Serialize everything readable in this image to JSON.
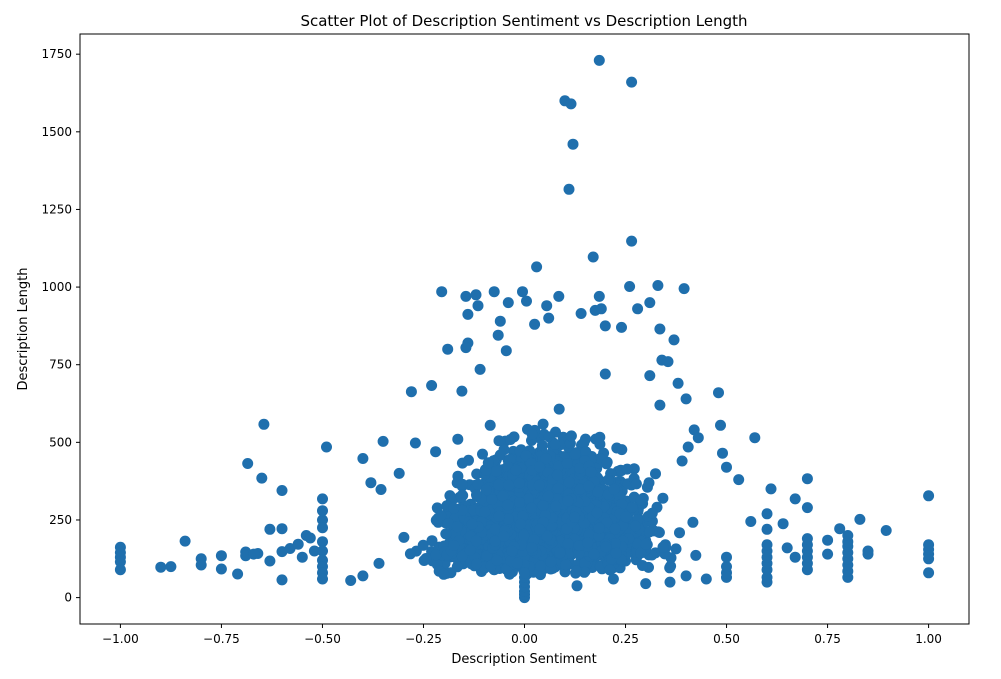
{
  "chart_data": {
    "type": "scatter",
    "title": "Scatter Plot of Description Sentiment vs Description Length",
    "xlabel": "Description Sentiment",
    "ylabel": "Description Length",
    "xlim": [
      -1.1,
      1.1
    ],
    "ylim": [
      -85,
      1815
    ],
    "xticks": [
      -1.0,
      -0.75,
      -0.5,
      -0.25,
      0.0,
      0.25,
      0.5,
      0.75,
      1.0
    ],
    "xtick_labels": [
      "−1.00",
      "−0.75",
      "−0.50",
      "−0.25",
      "0.00",
      "0.25",
      "0.50",
      "0.75",
      "1.00"
    ],
    "yticks": [
      0,
      250,
      500,
      750,
      1000,
      1250,
      1500,
      1750
    ],
    "ytick_labels": [
      "0",
      "250",
      "500",
      "750",
      "1000",
      "1250",
      "1500",
      "1750"
    ],
    "grid": false,
    "marker_color": "#1f6fad",
    "points": [
      [
        0.185,
        1730
      ],
      [
        0.265,
        1660
      ],
      [
        0.1,
        1600
      ],
      [
        0.115,
        1590
      ],
      [
        0.12,
        1460
      ],
      [
        0.11,
        1315
      ],
      [
        0.265,
        1148
      ],
      [
        0.17,
        1097
      ],
      [
        0.03,
        1065
      ],
      [
        0.33,
        1005
      ],
      [
        0.395,
        995
      ],
      [
        -0.205,
        985
      ],
      [
        -0.075,
        985
      ],
      [
        -0.145,
        970
      ],
      [
        -0.12,
        975
      ],
      [
        0.26,
        1002
      ],
      [
        0.185,
        970
      ],
      [
        0.31,
        950
      ],
      [
        -0.14,
        912
      ],
      [
        0.055,
        940
      ],
      [
        -0.115,
        940
      ],
      [
        0.28,
        930
      ],
      [
        0.175,
        925
      ],
      [
        0.19,
        930
      ],
      [
        0.14,
        915
      ],
      [
        -0.06,
        890
      ],
      [
        -0.005,
        985
      ],
      [
        0.005,
        955
      ],
      [
        0.085,
        970
      ],
      [
        -0.04,
        950
      ],
      [
        0.025,
        880
      ],
      [
        0.06,
        900
      ],
      [
        -0.065,
        845
      ],
      [
        0.2,
        875
      ],
      [
        0.24,
        870
      ],
      [
        0.335,
        865
      ],
      [
        0.37,
        830
      ],
      [
        -0.14,
        820
      ],
      [
        -0.145,
        805
      ],
      [
        -0.19,
        800
      ],
      [
        -0.045,
        795
      ],
      [
        -0.11,
        735
      ],
      [
        0.34,
        765
      ],
      [
        0.355,
        760
      ],
      [
        0.31,
        715
      ],
      [
        0.2,
        720
      ],
      [
        0.38,
        690
      ],
      [
        -0.28,
        663
      ],
      [
        -0.23,
        683
      ],
      [
        -0.155,
        665
      ],
      [
        0.48,
        660
      ],
      [
        0.4,
        640
      ],
      [
        0.335,
        620
      ],
      [
        -0.085,
        555
      ],
      [
        -0.165,
        510
      ],
      [
        -0.645,
        558
      ],
      [
        -0.49,
        485
      ],
      [
        -0.35,
        503
      ],
      [
        -0.4,
        448
      ],
      [
        -0.27,
        498
      ],
      [
        -0.22,
        470
      ],
      [
        0.42,
        540
      ],
      [
        0.485,
        555
      ],
      [
        0.57,
        515
      ],
      [
        0.49,
        465
      ],
      [
        0.39,
        440
      ],
      [
        0.405,
        485
      ],
      [
        0.43,
        515
      ],
      [
        -0.685,
        432
      ],
      [
        -0.65,
        385
      ],
      [
        -0.6,
        345
      ],
      [
        -0.38,
        370
      ],
      [
        -0.355,
        348
      ],
      [
        -0.31,
        400
      ],
      [
        0.5,
        420
      ],
      [
        0.53,
        380
      ],
      [
        0.61,
        350
      ],
      [
        0.7,
        383
      ],
      [
        0.67,
        318
      ],
      [
        1.0,
        328
      ],
      [
        0.83,
        252
      ],
      [
        0.895,
        216
      ],
      [
        0.78,
        222
      ],
      [
        0.64,
        238
      ],
      [
        0.6,
        270
      ],
      [
        0.56,
        245
      ],
      [
        -0.63,
        220
      ],
      [
        -0.6,
        222
      ],
      [
        -0.54,
        200
      ],
      [
        -0.84,
        182
      ],
      [
        -1.0,
        162
      ],
      [
        -1.0,
        145
      ],
      [
        -1.0,
        130
      ],
      [
        -1.0,
        115
      ],
      [
        -1.0,
        90
      ],
      [
        -0.9,
        98
      ],
      [
        -0.875,
        100
      ],
      [
        -0.8,
        125
      ],
      [
        -0.8,
        105
      ],
      [
        -0.75,
        135
      ],
      [
        -0.75,
        92
      ],
      [
        -0.71,
        76
      ],
      [
        -0.69,
        147
      ],
      [
        -0.69,
        135
      ],
      [
        -0.66,
        142
      ],
      [
        -0.67,
        140
      ],
      [
        -0.63,
        118
      ],
      [
        -0.6,
        57
      ],
      [
        -0.6,
        148
      ],
      [
        -0.58,
        158
      ],
      [
        -0.56,
        172
      ],
      [
        -0.55,
        130
      ],
      [
        -0.53,
        192
      ],
      [
        -0.52,
        150
      ],
      [
        -0.5,
        250
      ],
      [
        -0.5,
        225
      ],
      [
        -0.5,
        180
      ],
      [
        -0.5,
        150
      ],
      [
        -0.5,
        120
      ],
      [
        -0.5,
        100
      ],
      [
        -0.5,
        80
      ],
      [
        -0.5,
        60
      ],
      [
        -0.5,
        318
      ],
      [
        -0.5,
        280
      ],
      [
        -0.43,
        55
      ],
      [
        -0.4,
        70
      ],
      [
        -0.36,
        110
      ],
      [
        0.4,
        70
      ],
      [
        0.45,
        60
      ],
      [
        0.5,
        65
      ],
      [
        0.5,
        80
      ],
      [
        0.5,
        100
      ],
      [
        0.5,
        130
      ],
      [
        0.6,
        50
      ],
      [
        0.6,
        65
      ],
      [
        0.6,
        90
      ],
      [
        0.6,
        110
      ],
      [
        0.6,
        130
      ],
      [
        0.6,
        150
      ],
      [
        0.6,
        170
      ],
      [
        0.6,
        220
      ],
      [
        0.7,
        90
      ],
      [
        0.7,
        110
      ],
      [
        0.7,
        130
      ],
      [
        0.7,
        150
      ],
      [
        0.7,
        170
      ],
      [
        0.7,
        190
      ],
      [
        0.7,
        290
      ],
      [
        0.67,
        130
      ],
      [
        0.65,
        160
      ],
      [
        0.75,
        140
      ],
      [
        0.75,
        185
      ],
      [
        0.8,
        65
      ],
      [
        0.8,
        85
      ],
      [
        0.8,
        105
      ],
      [
        0.8,
        125
      ],
      [
        0.8,
        145
      ],
      [
        0.8,
        165
      ],
      [
        0.8,
        180
      ],
      [
        0.8,
        200
      ],
      [
        0.85,
        140
      ],
      [
        0.85,
        150
      ],
      [
        1.0,
        80
      ],
      [
        1.0,
        125
      ],
      [
        1.0,
        140
      ],
      [
        1.0,
        155
      ],
      [
        1.0,
        170
      ],
      [
        0.0,
        0
      ],
      [
        0.0,
        10
      ],
      [
        0.0,
        20
      ],
      [
        0.0,
        35
      ],
      [
        0.0,
        50
      ],
      [
        0.0,
        65
      ],
      [
        0.0,
        80
      ],
      [
        0.13,
        38
      ],
      [
        0.3,
        45
      ],
      [
        0.36,
        50
      ],
      [
        0.22,
        60
      ],
      [
        -0.2,
        75
      ]
    ]
  }
}
